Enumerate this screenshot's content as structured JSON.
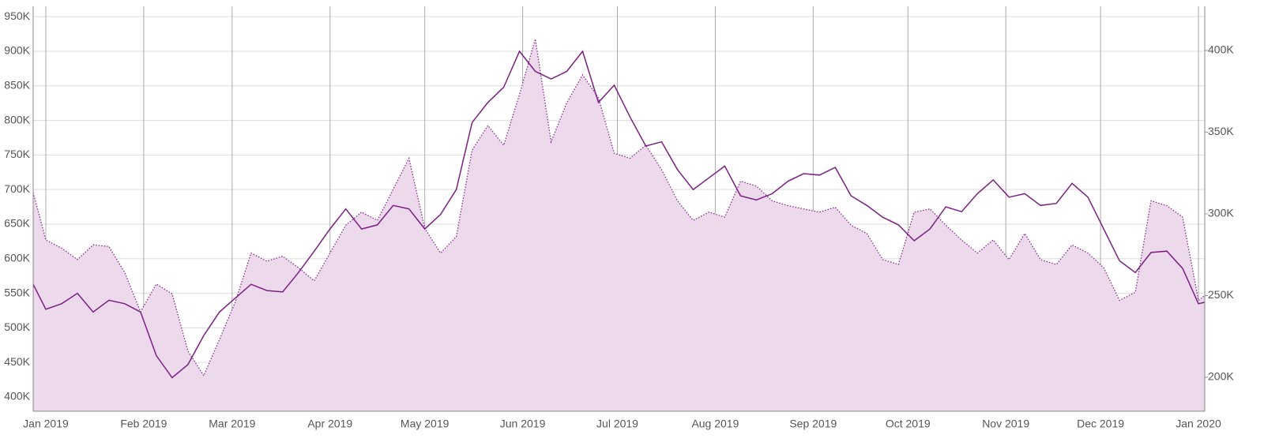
{
  "chart_data": {
    "type": "line",
    "grid": true,
    "x": [
      -4,
      0,
      5,
      10,
      15,
      20,
      25,
      30,
      35,
      40,
      45,
      50,
      55,
      60,
      65,
      70,
      75,
      80,
      85,
      90,
      95,
      100,
      105,
      110,
      115,
      120,
      125,
      130,
      135,
      140,
      145,
      150,
      155,
      160,
      165,
      170,
      175,
      180,
      185,
      190,
      195,
      200,
      205,
      210,
      215,
      220,
      225,
      230,
      235,
      240,
      245,
      250,
      255,
      260,
      265,
      270,
      275,
      280,
      285,
      290,
      295,
      300,
      305,
      310,
      315,
      320,
      325,
      330,
      335,
      340,
      345,
      350,
      355,
      360,
      365,
      367
    ],
    "xlim": [
      -4,
      367
    ],
    "xticks": [
      {
        "value": 0,
        "label": "Jan 2019"
      },
      {
        "value": 31,
        "label": "Feb 2019"
      },
      {
        "value": 59,
        "label": "Mar 2019"
      },
      {
        "value": 90,
        "label": "Apr 2019"
      },
      {
        "value": 120,
        "label": "May 2019"
      },
      {
        "value": 151,
        "label": "Jun 2019"
      },
      {
        "value": 181,
        "label": "Jul 2019"
      },
      {
        "value": 212,
        "label": "Aug 2019"
      },
      {
        "value": 243,
        "label": "Sep 2019"
      },
      {
        "value": 273,
        "label": "Oct 2019"
      },
      {
        "value": 304,
        "label": "Nov 2019"
      },
      {
        "value": 334,
        "label": "Dec 2019"
      },
      {
        "value": 365,
        "label": "Jan 2020"
      }
    ],
    "ylim": [
      379500,
      965000
    ],
    "yticks": [
      {
        "value": 400000,
        "label": "400K"
      },
      {
        "value": 450000,
        "label": "450K"
      },
      {
        "value": 500000,
        "label": "500K"
      },
      {
        "value": 550000,
        "label": "550K"
      },
      {
        "value": 600000,
        "label": "600K"
      },
      {
        "value": 650000,
        "label": "650K"
      },
      {
        "value": 700000,
        "label": "700K"
      },
      {
        "value": 750000,
        "label": "750K"
      },
      {
        "value": 800000,
        "label": "800K"
      },
      {
        "value": 850000,
        "label": "850K"
      },
      {
        "value": 900000,
        "label": "900K"
      },
      {
        "value": 950000,
        "label": "950K"
      }
    ],
    "y2lim": [
      179200,
      427000
    ],
    "y2ticks": [
      {
        "value": 200000,
        "label": "200K"
      },
      {
        "value": 250000,
        "label": "250K"
      },
      {
        "value": 300000,
        "label": "300K"
      },
      {
        "value": 350000,
        "label": "350K"
      },
      {
        "value": 400000,
        "label": "400K"
      }
    ],
    "series": [
      {
        "color": "#7b1f83",
        "style": "solid",
        "fill": false,
        "values": [
          563000,
          527000,
          535000,
          550000,
          523000,
          540000,
          535000,
          523000,
          460000,
          428000,
          447000,
          489000,
          523000,
          543000,
          563000,
          554000,
          552000,
          580000,
          611000,
          643000,
          672000,
          643000,
          649000,
          677000,
          672000,
          643000,
          664000,
          700000,
          797000,
          826000,
          848000,
          900000,
          871000,
          860000,
          871000,
          900000,
          826000,
          851000,
          805000,
          763000,
          769000,
          729000,
          700000,
          717000,
          734000,
          691000,
          685000,
          694000,
          712000,
          723000,
          721000,
          732000,
          691000,
          677000,
          660000,
          649000,
          626000,
          643000,
          675000,
          668000,
          694000,
          714000,
          689000,
          694000,
          677000,
          680000,
          709000,
          689000,
          643000,
          597000,
          580000,
          609000,
          611000,
          586000,
          535000,
          537000
        ]
      },
      {
        "color": "#8b2a8f",
        "fill_color": "#ecd9ec",
        "style": "dotted",
        "fill": true,
        "axis": "y2",
        "values": [
          313000,
          284000,
          279000,
          272000,
          281000,
          280000,
          264000,
          240000,
          257000,
          251000,
          216000,
          201000,
          223000,
          246000,
          276000,
          271000,
          274000,
          267000,
          259000,
          276000,
          293000,
          301000,
          296000,
          315000,
          334000,
          291000,
          276000,
          286000,
          339000,
          354000,
          342000,
          373000,
          407000,
          344000,
          368000,
          385000,
          371000,
          337000,
          334000,
          342000,
          327000,
          308000,
          296000,
          301000,
          298000,
          320000,
          317000,
          308000,
          305000,
          303000,
          301000,
          304000,
          293000,
          288000,
          272000,
          269000,
          301000,
          303000,
          293000,
          284000,
          276000,
          284000,
          272000,
          288000,
          272000,
          269000,
          281000,
          276000,
          267000,
          247000,
          252000,
          308000,
          305000,
          298000,
          247000,
          250000
        ]
      }
    ]
  }
}
